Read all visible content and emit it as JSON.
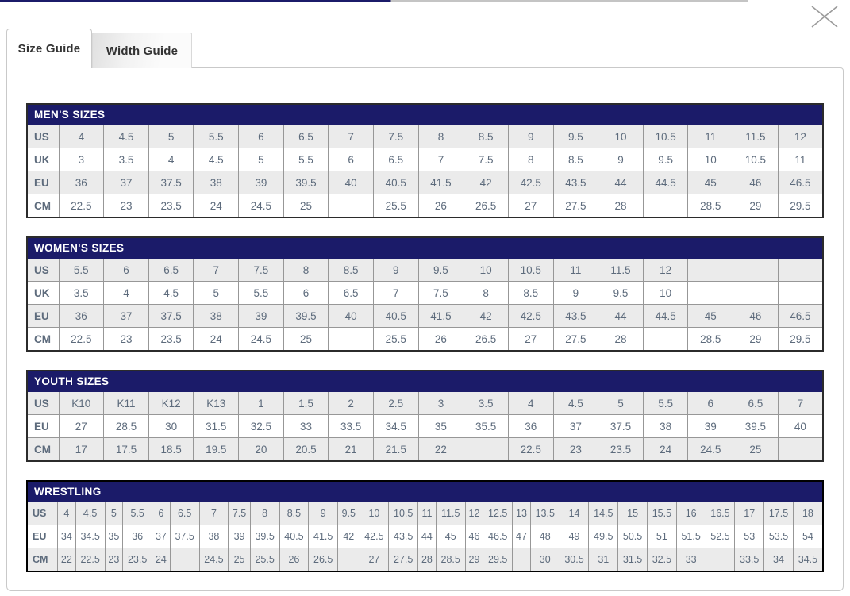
{
  "tabs": [
    {
      "label": "Size Guide",
      "active": true
    },
    {
      "label": "Width Guide",
      "active": false
    }
  ],
  "icons": {
    "close": "✕"
  },
  "colors": {
    "header_navy": "#1b1b69",
    "label_text": "#223a6e",
    "value_text": "#5d6b7c",
    "alt_row_bg": "#ebebeb",
    "cell_border": "#979797",
    "tab_text": "#333333"
  },
  "tables": [
    {
      "title": "MEN'S SIZES",
      "rows": [
        {
          "label": "US",
          "values": [
            "4",
            "4.5",
            "5",
            "5.5",
            "6",
            "6.5",
            "7",
            "7.5",
            "8",
            "8.5",
            "9",
            "9.5",
            "10",
            "10.5",
            "11",
            "11.5",
            "12"
          ]
        },
        {
          "label": "UK",
          "values": [
            "3",
            "3.5",
            "4",
            "4.5",
            "5",
            "5.5",
            "6",
            "6.5",
            "7",
            "7.5",
            "8",
            "8.5",
            "9",
            "9.5",
            "10",
            "10.5",
            "11"
          ]
        },
        {
          "label": "EU",
          "values": [
            "36",
            "37",
            "37.5",
            "38",
            "39",
            "39.5",
            "40",
            "40.5",
            "41.5",
            "42",
            "42.5",
            "43.5",
            "44",
            "44.5",
            "45",
            "46",
            "46.5"
          ]
        },
        {
          "label": "CM",
          "values": [
            "22.5",
            "23",
            "23.5",
            "24",
            "24.5",
            "25",
            "",
            "25.5",
            "26",
            "26.5",
            "27",
            "27.5",
            "28",
            "",
            "28.5",
            "29",
            "29.5"
          ]
        }
      ]
    },
    {
      "title": "WOMEN'S SIZES",
      "rows": [
        {
          "label": "US",
          "values": [
            "5.5",
            "6",
            "6.5",
            "7",
            "7.5",
            "8",
            "8.5",
            "9",
            "9.5",
            "10",
            "10.5",
            "11",
            "11.5",
            "12",
            "",
            "",
            ""
          ]
        },
        {
          "label": "UK",
          "values": [
            "3.5",
            "4",
            "4.5",
            "5",
            "5.5",
            "6",
            "6.5",
            "7",
            "7.5",
            "8",
            "8.5",
            "9",
            "9.5",
            "10",
            "",
            "",
            ""
          ]
        },
        {
          "label": "EU",
          "values": [
            "36",
            "37",
            "37.5",
            "38",
            "39",
            "39.5",
            "40",
            "40.5",
            "41.5",
            "42",
            "42.5",
            "43.5",
            "44",
            "44.5",
            "45",
            "46",
            "46.5"
          ]
        },
        {
          "label": "CM",
          "values": [
            "22.5",
            "23",
            "23.5",
            "24",
            "24.5",
            "25",
            "",
            "25.5",
            "26",
            "26.5",
            "27",
            "27.5",
            "28",
            "",
            "28.5",
            "29",
            "29.5"
          ]
        }
      ]
    },
    {
      "title": "YOUTH SIZES",
      "rows": [
        {
          "label": "US",
          "values": [
            "K10",
            "K11",
            "K12",
            "K13",
            "1",
            "1.5",
            "2",
            "2.5",
            "3",
            "3.5",
            "4",
            "4.5",
            "5",
            "5.5",
            "6",
            "6.5",
            "7"
          ]
        },
        {
          "label": "EU",
          "values": [
            "27",
            "28.5",
            "30",
            "31.5",
            "32.5",
            "33",
            "33.5",
            "34.5",
            "35",
            "35.5",
            "36",
            "37",
            "37.5",
            "38",
            "39",
            "39.5",
            "40"
          ]
        },
        {
          "label": "CM",
          "values": [
            "17",
            "17.5",
            "18.5",
            "19.5",
            "20",
            "20.5",
            "21",
            "21.5",
            "22",
            "",
            "22.5",
            "23",
            "23.5",
            "24",
            "24.5",
            "25",
            ""
          ]
        }
      ]
    },
    {
      "title": "WRESTLING",
      "rows": [
        {
          "label": "US",
          "values": [
            "4",
            "4.5",
            "5",
            "5.5",
            "6",
            "6.5",
            "7",
            "7.5",
            "8",
            "8.5",
            "9",
            "9.5",
            "10",
            "10.5",
            "11",
            "11.5",
            "12",
            "12.5",
            "13",
            "13.5",
            "14",
            "14.5",
            "15",
            "15.5",
            "16",
            "16.5",
            "17",
            "17.5",
            "18"
          ]
        },
        {
          "label": "EU",
          "values": [
            "34",
            "34.5",
            "35",
            "36",
            "37",
            "37.5",
            "38",
            "39",
            "39.5",
            "40.5",
            "41.5",
            "42",
            "42.5",
            "43.5",
            "44",
            "45",
            "46",
            "46.5",
            "47",
            "48",
            "49",
            "49.5",
            "50.5",
            "51",
            "51.5",
            "52.5",
            "53",
            "53.5",
            "54"
          ]
        },
        {
          "label": "CM",
          "values": [
            "22",
            "22.5",
            "23",
            "23.5",
            "24",
            "",
            "24.5",
            "25",
            "25.5",
            "26",
            "26.5",
            "",
            "27",
            "27.5",
            "28",
            "28.5",
            "29",
            "29.5",
            "",
            "30",
            "30.5",
            "31",
            "31.5",
            "32.5",
            "33",
            "",
            "33.5",
            "34",
            "34.5"
          ]
        }
      ]
    }
  ]
}
